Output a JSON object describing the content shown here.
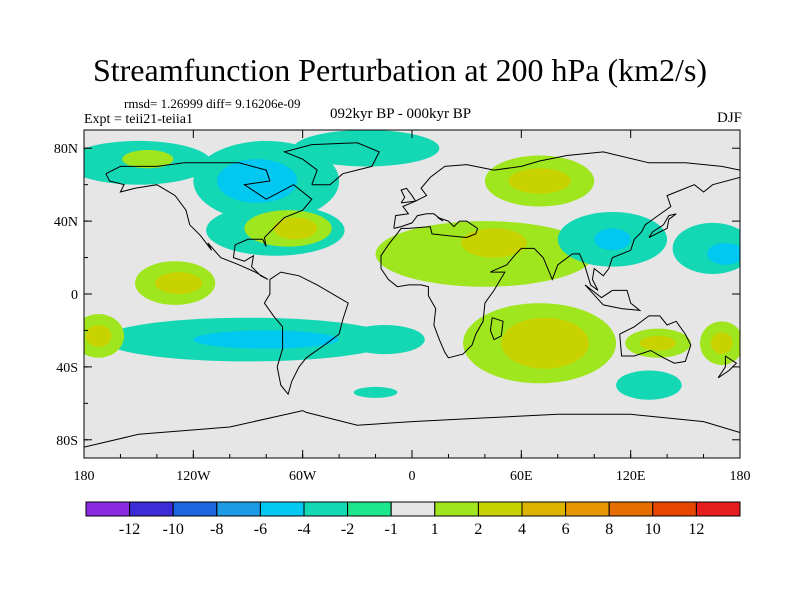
{
  "title": "Streamfunction Perturbation at 200 hPa (km2/s)",
  "stats": "rmsd= 1.26999  diff= 9.16206e-09",
  "experiment": "Expt = teii21-teiia1",
  "period": "092kyr BP - 000kyr BP",
  "season": "DJF",
  "map": {
    "lon_range": [
      -180,
      180
    ],
    "lat_range": [
      -90,
      90
    ],
    "x_ticks": [
      {
        "lon": -180,
        "label": "180"
      },
      {
        "lon": -120,
        "label": "120W"
      },
      {
        "lon": -60,
        "label": "60W"
      },
      {
        "lon": 0,
        "label": "0"
      },
      {
        "lon": 60,
        "label": "60E"
      },
      {
        "lon": 120,
        "label": "120E"
      },
      {
        "lon": 180,
        "label": "180"
      }
    ],
    "y_ticks": [
      {
        "lat": 80,
        "label": "80N"
      },
      {
        "lat": 40,
        "label": "40N"
      },
      {
        "lat": 0,
        "label": "0"
      },
      {
        "lat": -40,
        "label": "40S"
      },
      {
        "lat": -80,
        "label": "80S"
      }
    ],
    "background_color": "#e6e6e6",
    "contour_regions": [
      {
        "name": "north-pacific-band",
        "level": -2,
        "lon": -150,
        "lat": 72,
        "rlon": 40,
        "rlat": 12
      },
      {
        "name": "north-pacific-positive",
        "level": 2,
        "lon": -145,
        "lat": 74,
        "rlon": 14,
        "rlat": 5
      },
      {
        "name": "canada-negative",
        "level": -2,
        "lon": -80,
        "lat": 62,
        "rlon": 40,
        "rlat": 22
      },
      {
        "name": "canada-core",
        "level": -4,
        "lon": -85,
        "lat": 62,
        "rlon": 22,
        "rlat": 12
      },
      {
        "name": "arctic-atlantic-band",
        "level": -2,
        "lon": -25,
        "lat": 80,
        "rlon": 40,
        "rlat": 10
      },
      {
        "name": "east-us-negative",
        "level": -2,
        "lon": -75,
        "lat": 35,
        "rlon": 38,
        "rlat": 14
      },
      {
        "name": "east-us-positive",
        "level": 2,
        "lon": -68,
        "lat": 36,
        "rlon": 24,
        "rlat": 10
      },
      {
        "name": "east-us-core",
        "level": 4,
        "lon": -64,
        "lat": 36,
        "rlon": 12,
        "rlat": 6
      },
      {
        "name": "east-pacific-positive",
        "level": 2,
        "lon": -130,
        "lat": 6,
        "rlon": 22,
        "rlat": 12
      },
      {
        "name": "east-pacific-core",
        "level": 4,
        "lon": -128,
        "lat": 6,
        "rlon": 13,
        "rlat": 6
      },
      {
        "name": "south-pacific-band",
        "level": -2,
        "lon": -90,
        "lat": -25,
        "rlon": 80,
        "rlat": 12
      },
      {
        "name": "south-pacific-core",
        "level": -4,
        "lon": -80,
        "lat": -25,
        "rlon": 40,
        "rlat": 5
      },
      {
        "name": "west-south-pacific-positive",
        "level": 2,
        "lon": -172,
        "lat": -23,
        "rlon": 14,
        "rlat": 12
      },
      {
        "name": "west-south-pacific-core",
        "level": 4,
        "lon": -172,
        "lat": -23,
        "rlon": 7,
        "rlat": 6
      },
      {
        "name": "north-africa-band",
        "level": 2,
        "lon": 40,
        "lat": 22,
        "rlon": 60,
        "rlat": 18
      },
      {
        "name": "middle-east-core",
        "level": 4,
        "lon": 45,
        "lat": 28,
        "rlon": 18,
        "rlat": 8
      },
      {
        "name": "siberia-positive",
        "level": 2,
        "lon": 70,
        "lat": 62,
        "rlon": 30,
        "rlat": 14
      },
      {
        "name": "siberia-core",
        "level": 4,
        "lon": 70,
        "lat": 62,
        "rlon": 17,
        "rlat": 7
      },
      {
        "name": "asia-negative",
        "level": -2,
        "lon": 110,
        "lat": 30,
        "rlon": 30,
        "rlat": 15
      },
      {
        "name": "asia-core",
        "level": -4,
        "lon": 110,
        "lat": 30,
        "rlon": 10,
        "rlat": 6
      },
      {
        "name": "north-pacific-east-negative",
        "level": -2,
        "lon": 165,
        "lat": 25,
        "rlon": 22,
        "rlat": 14
      },
      {
        "name": "north-pacific-east-core",
        "level": -4,
        "lon": 172,
        "lat": 22,
        "rlon": 10,
        "rlat": 6
      },
      {
        "name": "indian-ocean-positive",
        "level": 2,
        "lon": 70,
        "lat": -27,
        "rlon": 42,
        "rlat": 22
      },
      {
        "name": "indian-ocean-core",
        "level": 4,
        "lon": 73,
        "lat": -27,
        "rlon": 24,
        "rlat": 14
      },
      {
        "name": "south-atlantic-negative",
        "level": -2,
        "lon": -15,
        "lat": -25,
        "rlon": 22,
        "rlat": 8
      },
      {
        "name": "australia-positive",
        "level": 2,
        "lon": 135,
        "lat": -27,
        "rlon": 18,
        "rlat": 8
      },
      {
        "name": "australia-core",
        "level": 4,
        "lon": 135,
        "lat": -27,
        "rlon": 10,
        "rlat": 4
      },
      {
        "name": "south-of-australia-negative",
        "level": -2,
        "lon": 130,
        "lat": -50,
        "rlon": 18,
        "rlat": 8
      },
      {
        "name": "south-atlantic-south-negative",
        "level": -2,
        "lon": -20,
        "lat": -54,
        "rlon": 12,
        "rlat": 3
      },
      {
        "name": "dateline-south-positive",
        "level": 2,
        "lon": 170,
        "lat": -27,
        "rlon": 12,
        "rlat": 12
      },
      {
        "name": "dateline-south-core",
        "level": 4,
        "lon": 170,
        "lat": -27,
        "rlon": 6,
        "rlat": 6
      }
    ]
  },
  "colorbar": {
    "colors": [
      "#8a2be2",
      "#3c2bd6",
      "#1e66e0",
      "#1e9be6",
      "#00c8f0",
      "#14d7b4",
      "#1ee68c",
      "#e6e6e6",
      "#a0e61e",
      "#c8d200",
      "#dcb400",
      "#e69600",
      "#e66e00",
      "#e64600",
      "#e61e1e"
    ],
    "labels": [
      "-12",
      "-10",
      "-8",
      "-6",
      "-4",
      "-2",
      "-1",
      "1",
      "2",
      "4",
      "6",
      "8",
      "10",
      "12"
    ]
  }
}
